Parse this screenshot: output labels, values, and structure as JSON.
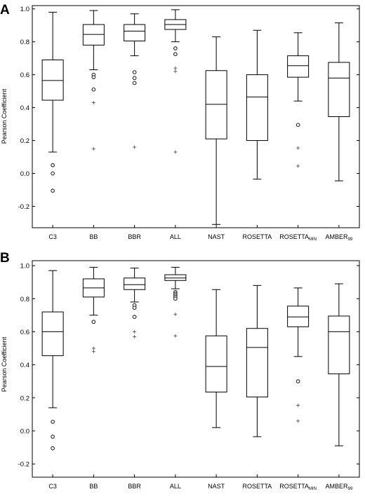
{
  "chart_data": [
    {
      "type": "box",
      "panel": "A",
      "ylabel": "Pearson Coefficient",
      "ylim": [
        -0.33,
        1.02
      ],
      "yticks": [
        "1.0",
        "0.8",
        "0.6",
        "0.4",
        "0.2",
        "0.0",
        "-0.2"
      ],
      "ytick_values": [
        1.0,
        0.8,
        0.6,
        0.4,
        0.2,
        0.0,
        -0.2
      ],
      "categories": [
        {
          "name": "C3",
          "sub": ""
        },
        {
          "name": "BB",
          "sub": ""
        },
        {
          "name": "BBR",
          "sub": ""
        },
        {
          "name": "ALL",
          "sub": ""
        },
        {
          "name": "NAST",
          "sub": ""
        },
        {
          "name": "ROSETTA",
          "sub": ""
        },
        {
          "name": "ROSETTA",
          "sub": "MIN"
        },
        {
          "name": "AMBER",
          "sub": "99"
        }
      ],
      "boxes": [
        {
          "whisker_low": 0.13,
          "q1": 0.445,
          "median": 0.565,
          "q3": 0.69,
          "whisker_high": 0.98,
          "outliers": [
            0.05,
            0.0,
            -0.105
          ],
          "extremes": []
        },
        {
          "whisker_low": 0.63,
          "q1": 0.78,
          "median": 0.845,
          "q3": 0.905,
          "whisker_high": 0.99,
          "outliers": [
            0.6,
            0.585,
            0.51
          ],
          "extremes": [
            0.43,
            0.15
          ]
        },
        {
          "whisker_low": 0.715,
          "q1": 0.805,
          "median": 0.865,
          "q3": 0.905,
          "whisker_high": 0.97,
          "outliers": [
            0.615,
            0.58,
            0.55
          ],
          "extremes": [
            0.16
          ]
        },
        {
          "whisker_low": 0.8,
          "q1": 0.875,
          "median": 0.905,
          "q3": 0.935,
          "whisker_high": 0.995,
          "outliers": [
            0.76,
            0.725
          ],
          "extremes": [
            0.64,
            0.62,
            0.13
          ]
        },
        {
          "whisker_low": -0.31,
          "q1": 0.21,
          "median": 0.42,
          "q3": 0.625,
          "whisker_high": 0.83,
          "outliers": [],
          "extremes": []
        },
        {
          "whisker_low": -0.035,
          "q1": 0.2,
          "median": 0.465,
          "q3": 0.6,
          "whisker_high": 0.87,
          "outliers": [],
          "extremes": []
        },
        {
          "whisker_low": 0.44,
          "q1": 0.585,
          "median": 0.655,
          "q3": 0.715,
          "whisker_high": 0.855,
          "outliers": [
            0.295
          ],
          "extremes": [
            0.155,
            0.045
          ]
        },
        {
          "whisker_low": -0.045,
          "q1": 0.345,
          "median": 0.58,
          "q3": 0.675,
          "whisker_high": 0.915,
          "outliers": [],
          "extremes": []
        }
      ]
    },
    {
      "type": "box",
      "panel": "B",
      "ylabel": "Pearson Coefficient",
      "ylim": [
        -0.28,
        1.03
      ],
      "yticks": [
        "1.0",
        "0.8",
        "0.6",
        "0.4",
        "0.2",
        "0.0",
        "-0.2"
      ],
      "ytick_values": [
        1.0,
        0.8,
        0.6,
        0.4,
        0.2,
        0.0,
        -0.2
      ],
      "categories": [
        {
          "name": "C3",
          "sub": ""
        },
        {
          "name": "BB",
          "sub": ""
        },
        {
          "name": "BBR",
          "sub": ""
        },
        {
          "name": "ALL",
          "sub": ""
        },
        {
          "name": "NAST",
          "sub": ""
        },
        {
          "name": "ROSETTA",
          "sub": ""
        },
        {
          "name": "ROSETTA",
          "sub": "MIN"
        },
        {
          "name": "AMBER",
          "sub": "99"
        }
      ],
      "boxes": [
        {
          "whisker_low": 0.14,
          "q1": 0.455,
          "median": 0.6,
          "q3": 0.72,
          "whisker_high": 0.97,
          "outliers": [
            0.055,
            -0.035,
            -0.105
          ],
          "extremes": []
        },
        {
          "whisker_low": 0.7,
          "q1": 0.81,
          "median": 0.865,
          "q3": 0.92,
          "whisker_high": 0.99,
          "outliers": [
            0.66
          ],
          "extremes": [
            0.5,
            0.48
          ]
        },
        {
          "whisker_low": 0.78,
          "q1": 0.855,
          "median": 0.885,
          "q3": 0.925,
          "whisker_high": 0.985,
          "outliers": [
            0.76,
            0.745,
            0.69
          ],
          "extremes": [
            0.6,
            0.57
          ]
        },
        {
          "whisker_low": 0.86,
          "q1": 0.91,
          "median": 0.925,
          "q3": 0.945,
          "whisker_high": 0.99,
          "outliers": [
            0.84,
            0.83,
            0.82,
            0.81,
            0.8
          ],
          "extremes": [
            0.705,
            0.575
          ]
        },
        {
          "whisker_low": 0.02,
          "q1": 0.235,
          "median": 0.39,
          "q3": 0.575,
          "whisker_high": 0.855,
          "outliers": [],
          "extremes": []
        },
        {
          "whisker_low": -0.035,
          "q1": 0.205,
          "median": 0.505,
          "q3": 0.62,
          "whisker_high": 0.88,
          "outliers": [],
          "extremes": []
        },
        {
          "whisker_low": 0.45,
          "q1": 0.63,
          "median": 0.69,
          "q3": 0.755,
          "whisker_high": 0.865,
          "outliers": [
            0.3
          ],
          "extremes": [
            0.155,
            0.06
          ]
        },
        {
          "whisker_low": -0.09,
          "q1": 0.345,
          "median": 0.6,
          "q3": 0.695,
          "whisker_high": 0.89,
          "outliers": [],
          "extremes": []
        }
      ]
    }
  ]
}
